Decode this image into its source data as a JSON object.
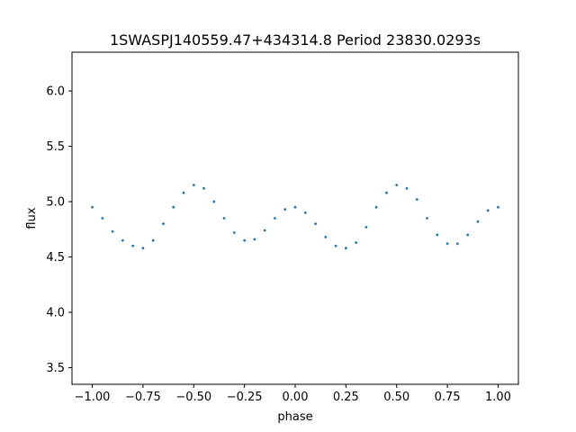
{
  "chart_data": {
    "type": "scatter",
    "title": "1SWASPJ140559.47+434314.8 Period 23830.0293s",
    "xlabel": "phase",
    "ylabel": "flux",
    "xlim": [
      -1.1,
      1.1
    ],
    "ylim": [
      3.35,
      6.35
    ],
    "x_ticks": [
      -1.0,
      -0.75,
      -0.5,
      -0.25,
      0.0,
      0.25,
      0.5,
      0.75,
      1.0
    ],
    "x_tick_labels": [
      "−1.00",
      "−0.75",
      "−0.50",
      "−0.25",
      "0.00",
      "0.25",
      "0.50",
      "0.75",
      "1.00"
    ],
    "y_ticks": [
      3.5,
      4.0,
      4.5,
      5.0,
      5.5,
      6.0
    ],
    "y_tick_labels": [
      "3.5",
      "4.0",
      "4.5",
      "5.0",
      "5.5",
      "6.0"
    ],
    "grid": false,
    "marker_color": "#1f77b4",
    "series": [
      {
        "x": [
          -1.0,
          -0.95,
          -0.9,
          -0.85,
          -0.8,
          -0.75,
          -0.7,
          -0.65,
          -0.6,
          -0.55,
          -0.5,
          -0.45,
          -0.4,
          -0.35,
          -0.3,
          -0.25,
          -0.2,
          -0.15,
          -0.1,
          -0.05,
          0.0,
          0.05,
          0.1,
          0.15,
          0.2,
          0.25,
          0.3,
          0.35,
          0.4,
          0.45,
          0.5,
          0.55,
          0.6,
          0.65,
          0.7,
          0.75,
          0.8,
          0.85,
          0.9,
          0.95,
          1.0
        ],
        "y": [
          4.95,
          4.85,
          4.73,
          4.65,
          4.6,
          4.58,
          4.65,
          4.8,
          4.95,
          5.08,
          5.15,
          5.12,
          5.0,
          4.85,
          4.72,
          4.65,
          4.66,
          4.74,
          4.85,
          4.93,
          4.95,
          4.9,
          4.8,
          4.68,
          4.6,
          4.58,
          4.63,
          4.77,
          4.95,
          5.08,
          5.15,
          5.12,
          5.02,
          4.85,
          4.7,
          4.62,
          4.62,
          4.7,
          4.82,
          4.92,
          4.95
        ]
      }
    ]
  }
}
